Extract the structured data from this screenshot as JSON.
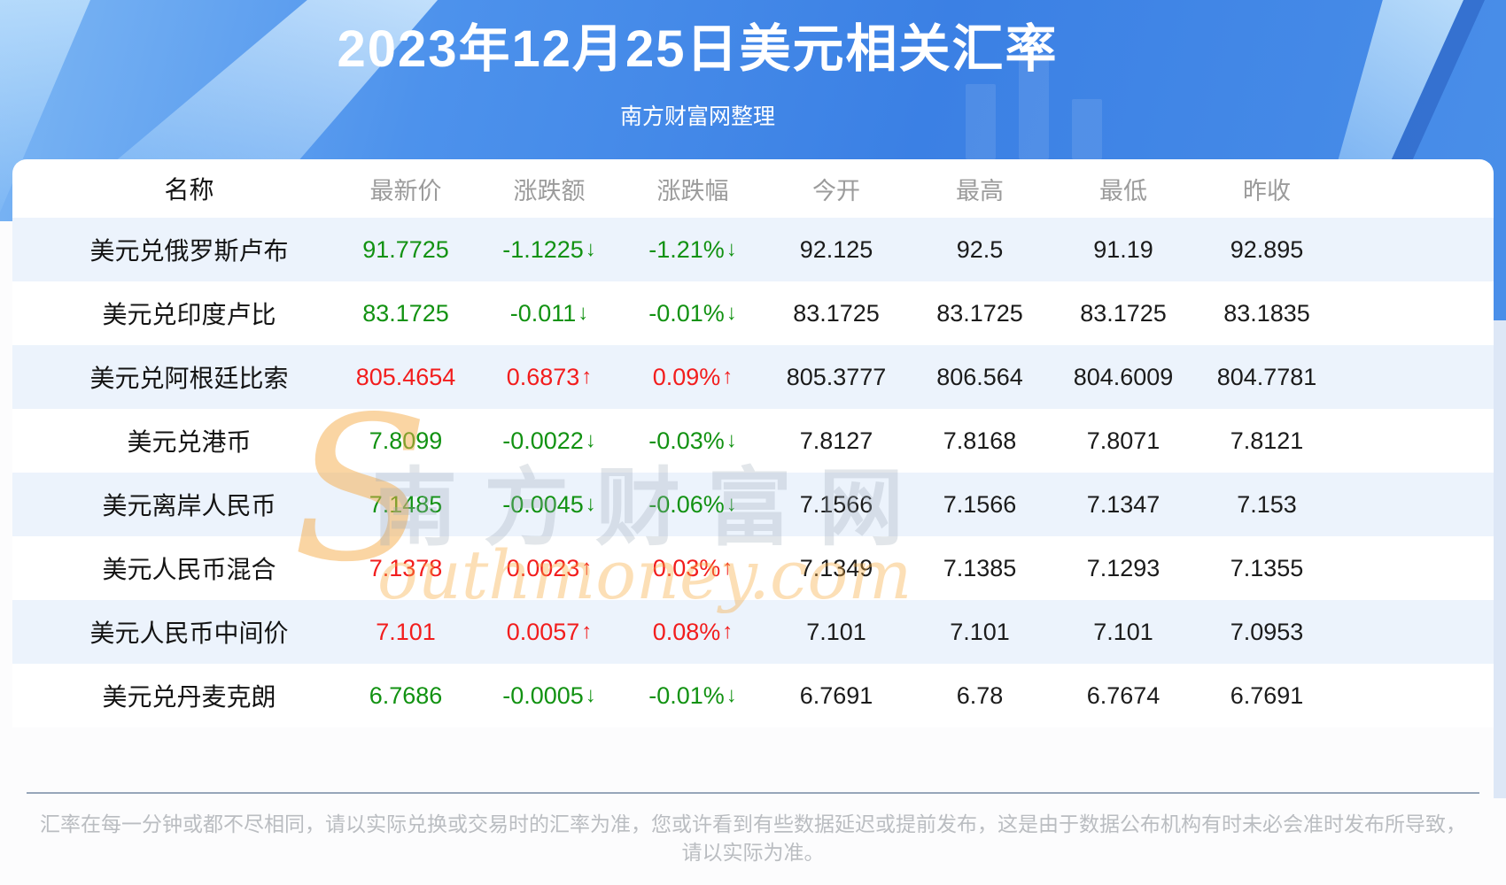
{
  "banner": {
    "title": "2023年12月25日美元相关汇率",
    "subtitle": "南方财富网整理"
  },
  "chart_data": {
    "type": "table",
    "title": "2023年12月25日美元相关汇率",
    "columns": [
      "名称",
      "最新价",
      "涨跌额",
      "涨跌幅",
      "今开",
      "最高",
      "最低",
      "昨收"
    ],
    "rows": [
      {
        "name": "美元兑俄罗斯卢布",
        "latest": "91.7725",
        "change": "-1.1225",
        "change_pct": "-1.21%",
        "direction": "down",
        "open": "92.125",
        "high": "92.5",
        "low": "91.19",
        "prev_close": "92.895"
      },
      {
        "name": "美元兑印度卢比",
        "latest": "83.1725",
        "change": "-0.011",
        "change_pct": "-0.01%",
        "direction": "down",
        "open": "83.1725",
        "high": "83.1725",
        "low": "83.1725",
        "prev_close": "83.1835"
      },
      {
        "name": "美元兑阿根廷比索",
        "latest": "805.4654",
        "change": "0.6873",
        "change_pct": "0.09%",
        "direction": "up",
        "open": "805.3777",
        "high": "806.564",
        "low": "804.6009",
        "prev_close": "804.7781"
      },
      {
        "name": "美元兑港币",
        "latest": "7.8099",
        "change": "-0.0022",
        "change_pct": "-0.03%",
        "direction": "down",
        "open": "7.8127",
        "high": "7.8168",
        "low": "7.8071",
        "prev_close": "7.8121"
      },
      {
        "name": "美元离岸人民币",
        "latest": "7.1485",
        "change": "-0.0045",
        "change_pct": "-0.06%",
        "direction": "down",
        "open": "7.1566",
        "high": "7.1566",
        "low": "7.1347",
        "prev_close": "7.153"
      },
      {
        "name": "美元人民币混合",
        "latest": "7.1378",
        "change": "0.0023",
        "change_pct": "0.03%",
        "direction": "up",
        "open": "7.1349",
        "high": "7.1385",
        "low": "7.1293",
        "prev_close": "7.1355"
      },
      {
        "name": "美元人民币中间价",
        "latest": "7.101",
        "change": "0.0057",
        "change_pct": "0.08%",
        "direction": "up",
        "open": "7.101",
        "high": "7.101",
        "low": "7.101",
        "prev_close": "7.0953"
      },
      {
        "name": "美元兑丹麦克朗",
        "latest": "6.7686",
        "change": "-0.0005",
        "change_pct": "-0.01%",
        "direction": "down",
        "open": "6.7691",
        "high": "6.78",
        "low": "6.7674",
        "prev_close": "6.7691"
      }
    ]
  },
  "icons": {
    "arrow_up": "↑",
    "arrow_down": "↓"
  },
  "colors": {
    "up": "#f21d1d",
    "down": "#129212",
    "row_alt": "#ecf3fc",
    "banner_from": "#7cb6f4",
    "banner_to": "#3b80e4"
  },
  "watermark": {
    "s": "S",
    "cn": "南方财富网",
    "en": "outhmoney.com"
  },
  "footer": {
    "line1": "汇率在每一分钟或都不尽相同，请以实际兑换或交易时的汇率为准，您或许看到有些数据延迟或提前发布，这是由于数据公布机构有时未必会准时发布所导致，",
    "line2": "请以实际为准。"
  }
}
